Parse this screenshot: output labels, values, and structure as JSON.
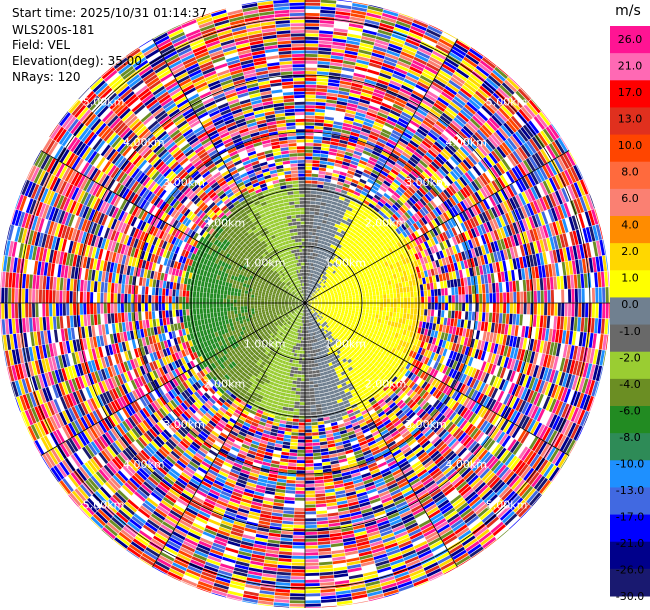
{
  "header": {
    "start_time": "Start time: 2025/10/31 01:14:37",
    "station": "WLS200s-181",
    "field": "Field: VEL",
    "elevation": "Elevation(deg): 35.00",
    "nrays": "NRays: 120"
  },
  "chart_data": {
    "type": "heatmap",
    "projection": "polar-ppi",
    "field": "VEL",
    "elevation_deg": 35.0,
    "n_rays": 120,
    "range_rings_km": [
      1.0,
      2.0,
      3.0,
      4.0,
      5.0
    ],
    "range_ring_labels": [
      "1.00km",
      "2.00km",
      "3.00km",
      "4.00km",
      "5.00km"
    ],
    "spokes_deg": [
      0,
      30,
      60,
      90,
      120,
      150,
      180,
      210,
      240,
      270,
      300,
      330
    ],
    "max_range_km": 5.3,
    "valid_data_range_km": 2.1,
    "colorbar": {
      "unit": "m/s",
      "ticks": [
        "26.0",
        "21.0",
        "17.0",
        "13.0",
        "10.0",
        "8.0",
        "6.0",
        "4.0",
        "2.0",
        "1.0",
        "0.0",
        "-1.0",
        "-2.0",
        "-4.0",
        "-6.0",
        "-8.0",
        "-10.0",
        "-13.0",
        "-17.0",
        "-21.0",
        "-26.0",
        "-30.0"
      ],
      "colors": [
        "#ff1493",
        "#ff69b4",
        "#ff0000",
        "#e0301e",
        "#ff4500",
        "#ff6a3d",
        "#fa8072",
        "#ff8c00",
        "#ffd700",
        "#ffff00",
        "#708090",
        "#696969",
        "#9acd32",
        "#6b8e23",
        "#228b22",
        "#2e8b57",
        "#1e90ff",
        "#4169e1",
        "#0000ff",
        "#00008b",
        "#191970"
      ]
    }
  }
}
